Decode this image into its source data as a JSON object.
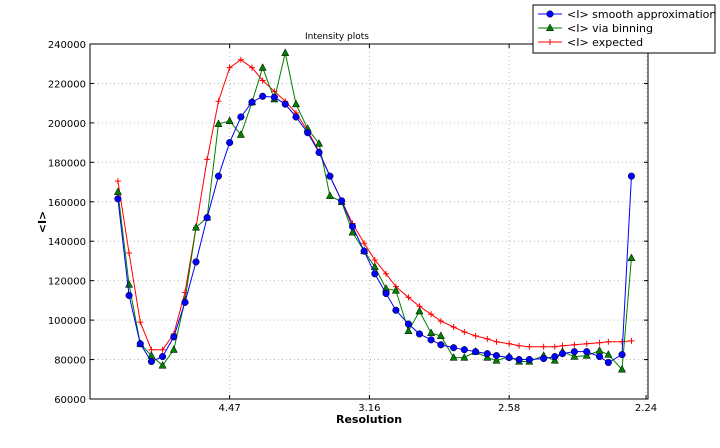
{
  "chart_data": {
    "type": "line",
    "title": "Intensity plots",
    "xlabel": "Resolution",
    "ylabel": "<I>",
    "x_scale": "reciprocal-square",
    "x_ticks": [
      4.47,
      3.16,
      2.58,
      2.24
    ],
    "x_tick_labels": [
      "4.47",
      "3.16",
      "2.58",
      "2.24"
    ],
    "ylim": [
      60000,
      240000
    ],
    "y_ticks": [
      60000,
      80000,
      100000,
      120000,
      140000,
      160000,
      180000,
      200000,
      220000,
      240000
    ],
    "y_tick_labels": [
      "60000",
      "80000",
      "100000",
      "120000",
      "140000",
      "160000",
      "180000",
      "200000",
      "220000",
      "240000"
    ],
    "grid": true,
    "legend_position": "top-right, outside",
    "x": [
      10.0,
      8.45,
      7.45,
      6.74,
      6.2,
      5.77,
      5.42,
      5.13,
      4.88,
      4.66,
      4.47,
      4.3,
      4.15,
      4.02,
      3.89,
      3.78,
      3.68,
      3.58,
      3.49,
      3.41,
      3.33,
      3.26,
      3.19,
      3.13,
      3.07,
      3.02,
      2.96,
      2.91,
      2.86,
      2.82,
      2.77,
      2.73,
      2.69,
      2.65,
      2.62,
      2.58,
      2.55,
      2.52,
      2.48,
      2.45,
      2.43,
      2.4,
      2.37,
      2.34,
      2.32,
      2.29,
      2.27
    ],
    "series": [
      {
        "name": "<I> smooth approximation",
        "color": "#0000ff",
        "marker": "circle",
        "values": [
          161500,
          112500,
          88000,
          79000,
          81500,
          91500,
          109000,
          129500,
          152000,
          173000,
          190000,
          203000,
          210500,
          213500,
          213000,
          209500,
          203000,
          195000,
          185000,
          173000,
          160500,
          147500,
          135000,
          123500,
          113500,
          105000,
          98000,
          93000,
          90000,
          87500,
          86000,
          85000,
          84000,
          83000,
          82000,
          81000,
          80000,
          80000,
          80500,
          81500,
          83000,
          84000,
          84000,
          81500,
          78500,
          82500,
          173000
        ]
      },
      {
        "name": "<I> via binning",
        "color": "#007f00",
        "marker": "triangle",
        "values": [
          165000,
          118000,
          88000,
          82000,
          77000,
          85000,
          110000,
          147000,
          152000,
          199500,
          201000,
          194000,
          210500,
          228000,
          212000,
          235500,
          209500,
          197000,
          189500,
          163000,
          160000,
          144500,
          135000,
          127000,
          116000,
          115000,
          94500,
          104500,
          93500,
          92000,
          81000,
          81000,
          84000,
          81000,
          79500,
          81500,
          79000,
          79000,
          82000,
          79500,
          84000,
          81500,
          82000,
          84500,
          82500,
          75000,
          131500
        ]
      },
      {
        "name": "<I> expected",
        "color": "#ff0000",
        "marker": "plus",
        "values": [
          170500,
          134000,
          99000,
          85000,
          85000,
          93000,
          114000,
          147000,
          181500,
          211000,
          228000,
          232000,
          228000,
          221500,
          216000,
          211000,
          205000,
          196000,
          185500,
          173000,
          160500,
          149000,
          139000,
          130500,
          123500,
          117000,
          111500,
          107000,
          103000,
          99500,
          96500,
          94000,
          92000,
          90500,
          89000,
          88000,
          87000,
          86500,
          86500,
          86500,
          87000,
          87500,
          88000,
          88500,
          89000,
          89000,
          89500
        ]
      }
    ]
  }
}
